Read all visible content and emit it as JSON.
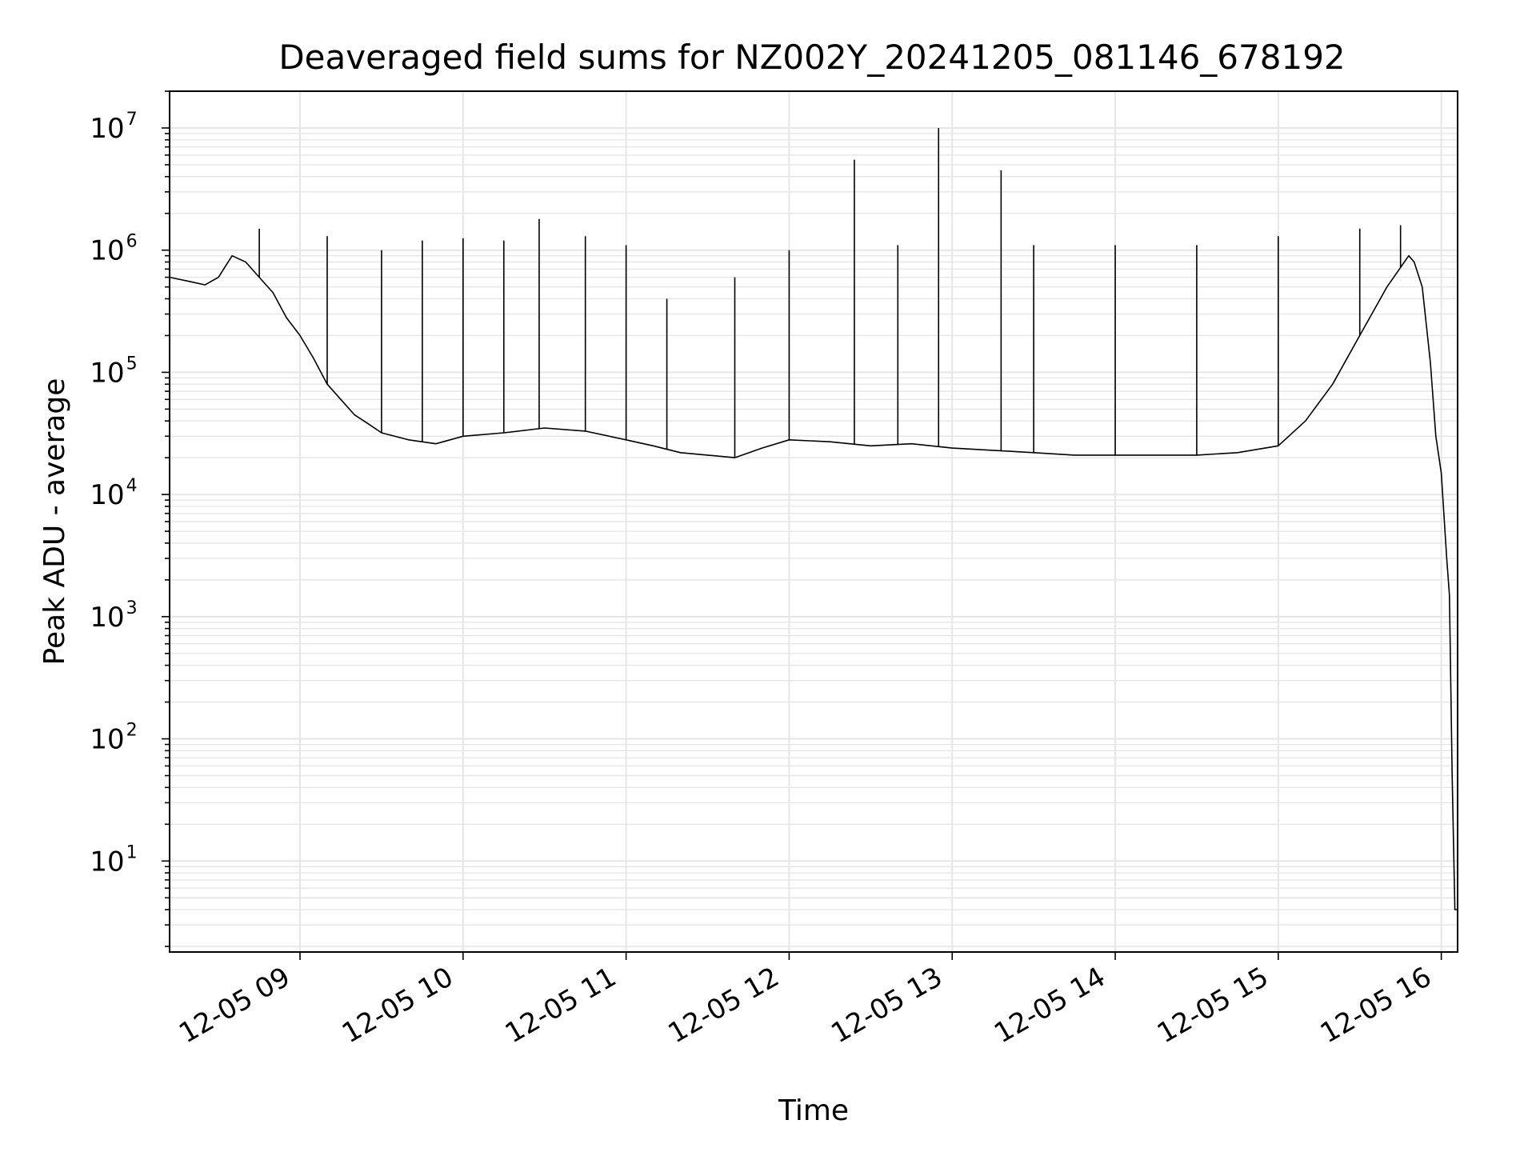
{
  "chart_data": {
    "type": "line",
    "title": "Deaveraged field sums for NZ002Y_20241205_081146_678192",
    "xlabel": "Time",
    "ylabel": "Peak ADU - average",
    "y_scale": "log",
    "ylim": [
      1.8,
      20000000
    ],
    "xlim": [
      "2024-12-05 08:12",
      "2024-12-05 16:06"
    ],
    "x_ticks": [
      "2024-12-05 09:00",
      "2024-12-05 10:00",
      "2024-12-05 11:00",
      "2024-12-05 12:00",
      "2024-12-05 13:00",
      "2024-12-05 14:00",
      "2024-12-05 15:00",
      "2024-12-05 16:00"
    ],
    "x_tick_labels": [
      "12-05 09",
      "12-05 10",
      "12-05 11",
      "12-05 12",
      "12-05 13",
      "12-05 14",
      "12-05 15",
      "12-05 16"
    ],
    "y_ticks": [
      10,
      100,
      1000,
      10000,
      100000,
      1000000,
      10000000
    ],
    "y_tick_labels": [
      {
        "base": "10",
        "exp": "1"
      },
      {
        "base": "10",
        "exp": "2"
      },
      {
        "base": "10",
        "exp": "3"
      },
      {
        "base": "10",
        "exp": "4"
      },
      {
        "base": "10",
        "exp": "5"
      },
      {
        "base": "10",
        "exp": "6"
      },
      {
        "base": "10",
        "exp": "7"
      }
    ],
    "grid": true,
    "line_color": "#000000",
    "grid_color": "#e6e6e6",
    "series": [
      {
        "x": [
          "2024-12-05 08:12",
          "2024-12-05 08:20",
          "2024-12-05 08:25",
          "2024-12-05 08:30",
          "2024-12-05 08:35",
          "2024-12-05 08:40",
          "2024-12-05 08:45",
          "2024-12-05 08:50",
          "2024-12-05 08:55",
          "2024-12-05 09:00",
          "2024-12-05 09:05",
          "2024-12-05 09:10",
          "2024-12-05 09:15",
          "2024-12-05 09:20",
          "2024-12-05 09:25",
          "2024-12-05 09:30",
          "2024-12-05 09:40",
          "2024-12-05 09:50",
          "2024-12-05 10:00",
          "2024-12-05 10:15",
          "2024-12-05 10:30",
          "2024-12-05 10:45",
          "2024-12-05 11:00",
          "2024-12-05 11:10",
          "2024-12-05 11:20",
          "2024-12-05 11:30",
          "2024-12-05 11:40",
          "2024-12-05 11:50",
          "2024-12-05 12:00",
          "2024-12-05 12:15",
          "2024-12-05 12:30",
          "2024-12-05 12:45",
          "2024-12-05 13:00",
          "2024-12-05 13:15",
          "2024-12-05 13:30",
          "2024-12-05 13:45",
          "2024-12-05 14:00",
          "2024-12-05 14:15",
          "2024-12-05 14:30",
          "2024-12-05 14:45",
          "2024-12-05 15:00",
          "2024-12-05 15:10",
          "2024-12-05 15:20",
          "2024-12-05 15:30",
          "2024-12-05 15:40",
          "2024-12-05 15:48",
          "2024-12-05 15:50",
          "2024-12-05 15:53",
          "2024-12-05 15:56",
          "2024-12-05 15:58",
          "2024-12-05 16:00",
          "2024-12-05 16:02",
          "2024-12-05 16:03",
          "2024-12-05 16:04",
          "2024-12-05 16:05",
          "2024-12-05 16:06"
        ],
        "y": [
          600000,
          550000,
          520000,
          600000,
          900000,
          800000,
          600000,
          450000,
          280000,
          200000,
          130000,
          80000,
          60000,
          45000,
          38000,
          32000,
          28000,
          26000,
          30000,
          32000,
          35000,
          33000,
          28000,
          25000,
          22000,
          21000,
          20000,
          24000,
          28000,
          27000,
          25000,
          26000,
          24000,
          23000,
          22000,
          21000,
          21000,
          21000,
          21000,
          22000,
          25000,
          40000,
          80000,
          200000,
          500000,
          900000,
          800000,
          500000,
          120000,
          30000,
          15000,
          3000,
          1500,
          50,
          4,
          4
        ]
      }
    ],
    "spikes": [
      {
        "x": "2024-12-05 08:45",
        "y": 1500000
      },
      {
        "x": "2024-12-05 09:10",
        "y": 1300000
      },
      {
        "x": "2024-12-05 09:30",
        "y": 1000000
      },
      {
        "x": "2024-12-05 09:45",
        "y": 1200000
      },
      {
        "x": "2024-12-05 10:00",
        "y": 1250000
      },
      {
        "x": "2024-12-05 10:15",
        "y": 1200000
      },
      {
        "x": "2024-12-05 10:28",
        "y": 1800000
      },
      {
        "x": "2024-12-05 10:45",
        "y": 1300000
      },
      {
        "x": "2024-12-05 11:00",
        "y": 1100000
      },
      {
        "x": "2024-12-05 11:15",
        "y": 400000
      },
      {
        "x": "2024-12-05 11:40",
        "y": 600000
      },
      {
        "x": "2024-12-05 12:00",
        "y": 1000000
      },
      {
        "x": "2024-12-05 12:24",
        "y": 5500000
      },
      {
        "x": "2024-12-05 12:40",
        "y": 1100000
      },
      {
        "x": "2024-12-05 12:55",
        "y": 10000000
      },
      {
        "x": "2024-12-05 13:18",
        "y": 4500000
      },
      {
        "x": "2024-12-05 13:30",
        "y": 1100000
      },
      {
        "x": "2024-12-05 14:00",
        "y": 1100000
      },
      {
        "x": "2024-12-05 14:30",
        "y": 1100000
      },
      {
        "x": "2024-12-05 15:00",
        "y": 1300000
      },
      {
        "x": "2024-12-05 15:30",
        "y": 1500000
      },
      {
        "x": "2024-12-05 15:45",
        "y": 1600000
      }
    ]
  }
}
